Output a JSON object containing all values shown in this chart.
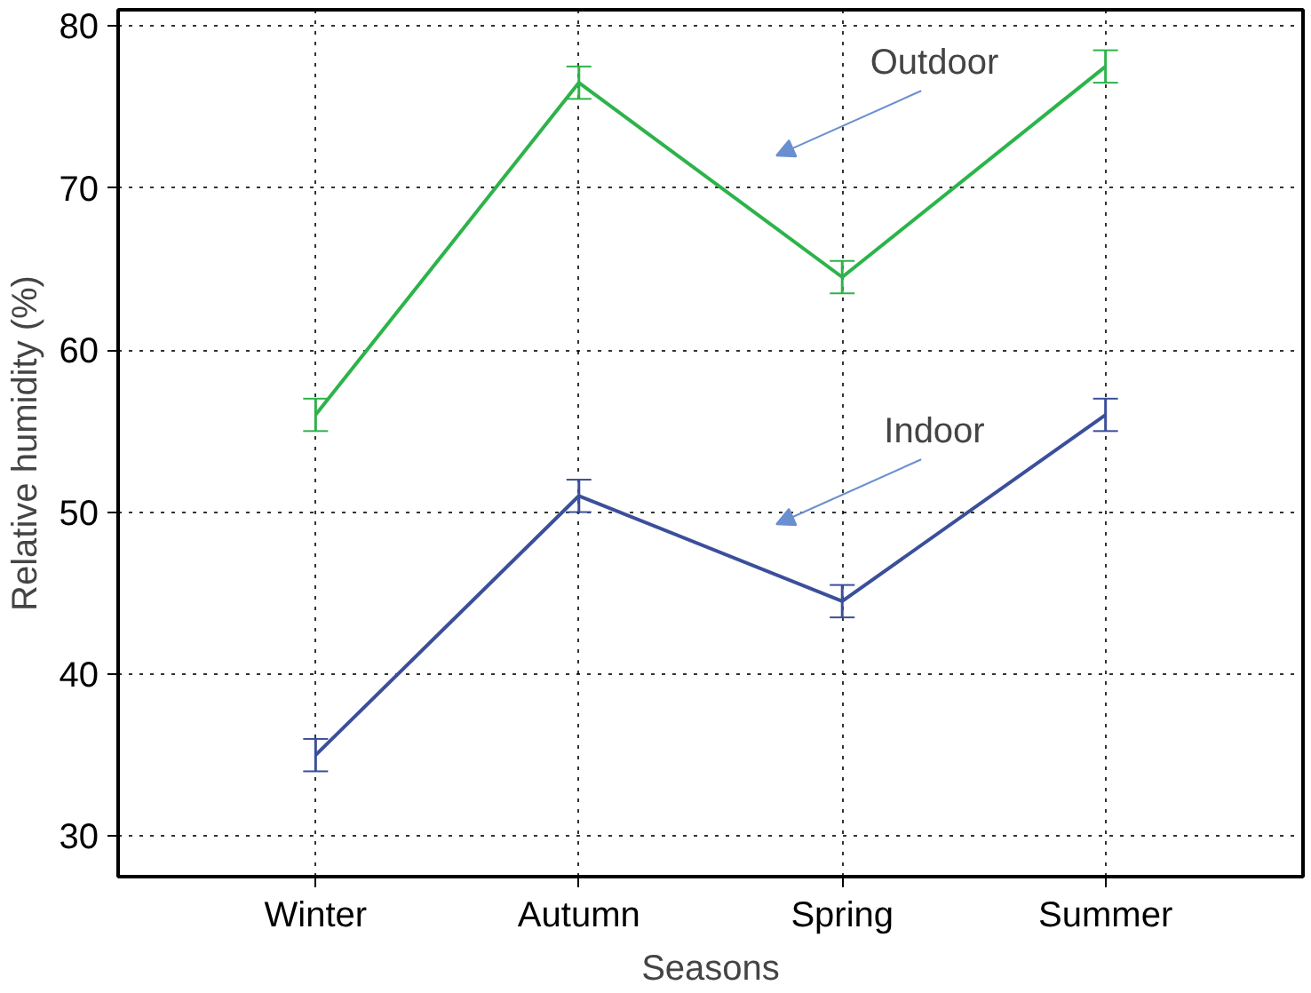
{
  "chart_data": {
    "type": "line",
    "xlabel": "Seasons",
    "ylabel": "Relative humidity (%)",
    "categories": [
      "Winter",
      "Autumn",
      "Spring",
      "Summer"
    ],
    "series": [
      {
        "color": "#2db34a",
        "values": [
          56,
          76.5,
          64.5,
          77.5
        ],
        "errors": [
          1,
          1,
          1,
          1
        ]
      },
      {
        "color": "#3b4f9a",
        "values": [
          35,
          51,
          44.5,
          56
        ],
        "errors": [
          1,
          1,
          1,
          1
        ]
      }
    ],
    "annotations": [
      "Outdoor",
      "Indoor"
    ],
    "ylim": [
      27.5,
      81
    ],
    "yticks": [
      30,
      40,
      50,
      60,
      70,
      80
    ],
    "grid": true,
    "line_style": "solid"
  }
}
